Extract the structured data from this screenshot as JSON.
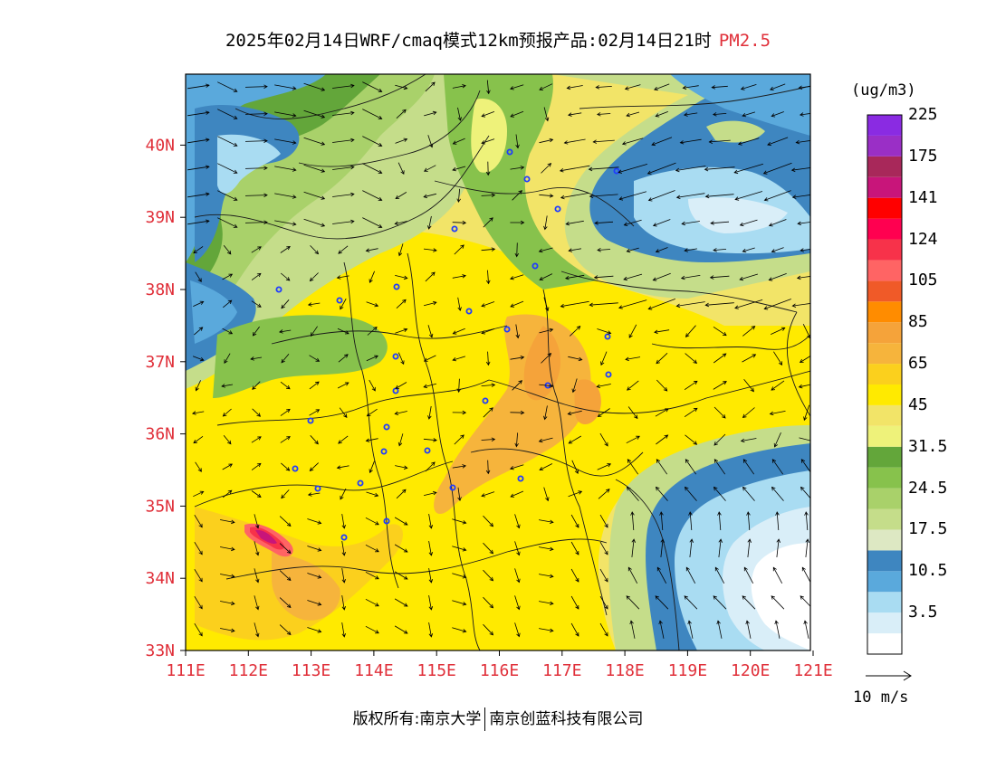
{
  "title": {
    "main": "2025年02月14日WRF/cmaq模式12km预报产品:02月14日21时",
    "variable": "PM2.5"
  },
  "axes": {
    "lat_labels": [
      "40N",
      "39N",
      "38N",
      "37N",
      "36N",
      "35N",
      "34N",
      "33N"
    ],
    "lat_values": [
      40,
      39,
      38,
      37,
      36,
      35,
      34,
      33
    ],
    "lon_labels": [
      "111E",
      "112E",
      "113E",
      "114E",
      "115E",
      "116E",
      "117E",
      "118E",
      "119E",
      "120E",
      "121E"
    ],
    "lon_values": [
      111,
      112,
      113,
      114,
      115,
      116,
      117,
      118,
      119,
      120,
      121
    ],
    "label_color": "#e0303a"
  },
  "legend": {
    "units": "(ug/m3)",
    "bins": [
      {
        "color": "#ffffff"
      },
      {
        "color": "#d9eef8",
        "label": "3.5"
      },
      {
        "color": "#a9dcf2"
      },
      {
        "color": "#5aa9dc",
        "label": "10.5"
      },
      {
        "color": "#3e86c0"
      },
      {
        "color": "#dde8c3",
        "label": "17.5"
      },
      {
        "color": "#c5dd8a"
      },
      {
        "color": "#a9d16a",
        "label": "24.5"
      },
      {
        "color": "#87c24c"
      },
      {
        "color": "#63a63a",
        "label": "31.5"
      },
      {
        "color": "#eef27a"
      },
      {
        "color": "#f2e468",
        "label": "45"
      },
      {
        "color": "#ffea00"
      },
      {
        "color": "#fbd01d",
        "label": "65"
      },
      {
        "color": "#f6b43c"
      },
      {
        "color": "#f5a33a",
        "label": "85"
      },
      {
        "color": "#ff8c00"
      },
      {
        "color": "#f05a28",
        "label": "105"
      },
      {
        "color": "#ff6464"
      },
      {
        "color": "#f7324a",
        "label": "124"
      },
      {
        "color": "#ff0050"
      },
      {
        "color": "#ff0000",
        "label": "141"
      },
      {
        "color": "#c8157a"
      },
      {
        "color": "#a8285a",
        "label": "175"
      },
      {
        "color": "#9a2fc6"
      },
      {
        "color": "#8a2be2",
        "label": "225"
      }
    ]
  },
  "wind": {
    "reference_label": "10 m/s"
  },
  "footer": {
    "copyright": "版权所有:南京大学",
    "company": "南京创蓝科技有限公司"
  }
}
